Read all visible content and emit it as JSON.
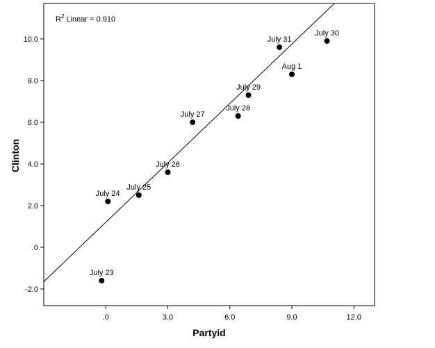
{
  "chart_data": {
    "type": "scatter",
    "xlabel": "Partyid",
    "ylabel": "Clinton",
    "xlim": [
      -3,
      13
    ],
    "ylim": [
      -2.8,
      11.7
    ],
    "x_ticks": [
      0,
      3,
      6,
      9,
      12
    ],
    "x_tick_labels": [
      ".0",
      "3.0",
      "6.0",
      "9.0",
      "12.0"
    ],
    "y_ticks": [
      -2,
      0,
      2,
      4,
      6,
      8,
      10
    ],
    "y_tick_labels": [
      "-2.0",
      ".0",
      "2.0",
      "4.0",
      "6.0",
      "8.0",
      "10.0"
    ],
    "grid": false,
    "points": [
      {
        "label": "July 23",
        "x": -0.2,
        "y": -1.6
      },
      {
        "label": "July 24",
        "x": 0.1,
        "y": 2.2
      },
      {
        "label": "July 25",
        "x": 1.6,
        "y": 2.5
      },
      {
        "label": "July 26",
        "x": 3.0,
        "y": 3.6
      },
      {
        "label": "July 27",
        "x": 4.2,
        "y": 6.0
      },
      {
        "label": "July 28",
        "x": 6.4,
        "y": 6.3
      },
      {
        "label": "July 29",
        "x": 6.9,
        "y": 7.3
      },
      {
        "label": "July 31",
        "x": 8.4,
        "y": 9.6
      },
      {
        "label": "Aug 1",
        "x": 9.0,
        "y": 8.3
      },
      {
        "label": "July 30",
        "x": 10.7,
        "y": 9.9
      }
    ],
    "fit_line": {
      "slope": 0.95,
      "intercept": 1.2
    },
    "annotation": {
      "prefix": "R",
      "superscript": "2",
      "text": " Linear = 0.910"
    }
  }
}
